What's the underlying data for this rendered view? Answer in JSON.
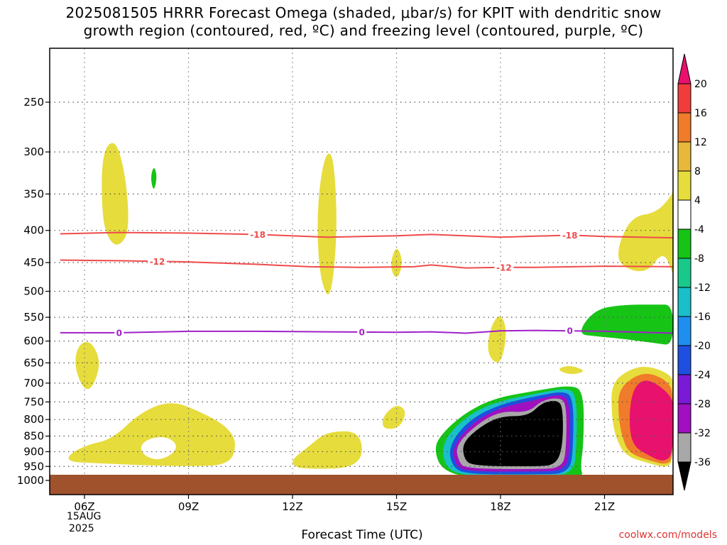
{
  "title_line1": "2025081505 HRRR Forecast Omega (shaded, μbar/s) for KPIT with dendritic snow",
  "title_line2": "growth region (contoured, red, ºC) and freezing level (contoured, purple, ºC)",
  "xlabel": "Forecast Time (UTC)",
  "credit": "coolwx.com/models",
  "date_line1": "15AUG",
  "date_line2": "2025",
  "chart_data": {
    "type": "time-height contour",
    "y_scale": "log-pressure (hPa), inverted",
    "x_ticks": [
      {
        "hour": 6,
        "label": "06Z"
      },
      {
        "hour": 9,
        "label": "09Z"
      },
      {
        "hour": 12,
        "label": "12Z"
      },
      {
        "hour": 15,
        "label": "15Z"
      },
      {
        "hour": 18,
        "label": "18Z"
      },
      {
        "hour": 21,
        "label": "21Z"
      }
    ],
    "y_ticks": [
      250,
      300,
      350,
      400,
      450,
      500,
      550,
      600,
      650,
      700,
      750,
      800,
      850,
      900,
      950,
      1000
    ],
    "colorbar_labels": [
      20,
      16,
      12,
      8,
      4,
      -4,
      -8,
      -12,
      -16,
      -20,
      -24,
      -28,
      -32,
      -36
    ],
    "colorbar_colors": [
      "#e8116e",
      "#f23b3b",
      "#f07b2a",
      "#e8b83a",
      "#e6dc3c",
      "#ffffff",
      "#16c416",
      "#18c98a",
      "#19bfc9",
      "#1e8ef0",
      "#1e4fe0",
      "#7a1ad6",
      "#a010c0",
      "#a8a8a8",
      "#000000"
    ],
    "contours": [
      {
        "name": "dgz-minus18",
        "label": "-18",
        "color": "#ef4b4b",
        "points": [
          [
            5.3,
            405
          ],
          [
            7,
            403
          ],
          [
            9,
            404
          ],
          [
            11,
            406
          ],
          [
            13,
            410
          ],
          [
            15,
            408
          ],
          [
            16,
            406
          ],
          [
            18,
            410
          ],
          [
            20,
            407
          ],
          [
            21,
            409
          ],
          [
            23,
            411
          ]
        ],
        "label_hours": [
          11.0,
          20.0
        ]
      },
      {
        "name": "dgz-minus12",
        "label": "-12",
        "color": "#ef4b4b",
        "points": [
          [
            5.3,
            446
          ],
          [
            7,
            447
          ],
          [
            9,
            449
          ],
          [
            11,
            453
          ],
          [
            12.5,
            457
          ],
          [
            14,
            458
          ],
          [
            15.5,
            457
          ],
          [
            16,
            454
          ],
          [
            17,
            459
          ],
          [
            18,
            458
          ],
          [
            19,
            458
          ],
          [
            21,
            456
          ],
          [
            23,
            457
          ]
        ],
        "label_hours": [
          8.1,
          18.1
        ]
      },
      {
        "name": "freezing-level",
        "label": "0",
        "color": "#a020c8",
        "points": [
          [
            5.3,
            582
          ],
          [
            7,
            582
          ],
          [
            9,
            579
          ],
          [
            11,
            579
          ],
          [
            13,
            580
          ],
          [
            15,
            581
          ],
          [
            16,
            580
          ],
          [
            17,
            583
          ],
          [
            18,
            578
          ],
          [
            19,
            577
          ],
          [
            20,
            578
          ],
          [
            21,
            579
          ],
          [
            23,
            583
          ]
        ],
        "label_hours": [
          7.0,
          14.0,
          20.0
        ]
      }
    ],
    "shaded_regions": [
      {
        "name": "uplift-yellow-1",
        "level": 4,
        "points": [
          [
            6.5,
            300
          ],
          [
            6.9,
            285
          ],
          [
            7.2,
            330
          ],
          [
            7.3,
            400
          ],
          [
            7.0,
            425
          ],
          [
            6.7,
            415
          ],
          [
            6.5,
            380
          ]
        ]
      },
      {
        "name": "uplift-yellow-2",
        "level": 4,
        "points": [
          [
            13.0,
            298
          ],
          [
            13.2,
            308
          ],
          [
            13.3,
            400
          ],
          [
            13.1,
            522
          ],
          [
            12.8,
            480
          ],
          [
            12.7,
            395
          ],
          [
            12.8,
            330
          ]
        ]
      },
      {
        "name": "uplift-yellow-3",
        "level": 4,
        "points": [
          [
            15.0,
            420
          ],
          [
            15.2,
            450
          ],
          [
            15.0,
            482
          ],
          [
            14.8,
            455
          ]
        ]
      },
      {
        "name": "uplift-yellow-4",
        "level": 4,
        "points": [
          [
            5.8,
            608
          ],
          [
            6.2,
            598
          ],
          [
            6.5,
            655
          ],
          [
            6.1,
            735
          ],
          [
            5.7,
            665
          ]
        ]
      },
      {
        "name": "uplift-yellow-5",
        "level": 4,
        "points": [
          [
            5.5,
            915
          ],
          [
            6.0,
            880
          ],
          [
            6.8,
            860
          ],
          [
            7.6,
            780
          ],
          [
            8.5,
            745
          ],
          [
            9.4,
            780
          ],
          [
            10.1,
            820
          ],
          [
            10.4,
            870
          ],
          [
            10.2,
            945
          ],
          [
            9.0,
            950
          ],
          [
            7.4,
            945
          ],
          [
            6.3,
            938
          ],
          [
            5.6,
            935
          ]
        ]
      },
      {
        "name": "uplift-yellow-6",
        "level": 4,
        "points": [
          [
            12.0,
            925
          ],
          [
            12.5,
            880
          ],
          [
            13.0,
            835
          ],
          [
            14.0,
            835
          ],
          [
            14.0,
            955
          ],
          [
            12.3,
            960
          ],
          [
            12.0,
            945
          ]
        ]
      },
      {
        "name": "uplift-yellow-7",
        "level": 4,
        "points": [
          [
            14.6,
            790
          ],
          [
            15.0,
            755
          ],
          [
            15.3,
            775
          ],
          [
            15.1,
            825
          ],
          [
            14.6,
            830
          ]
        ]
      },
      {
        "name": "uplift-yellow-8",
        "level": 4,
        "points": [
          [
            17.7,
            570
          ],
          [
            18.0,
            540
          ],
          [
            18.2,
            580
          ],
          [
            18.0,
            660
          ],
          [
            17.6,
            630
          ]
        ]
      },
      {
        "name": "uplift-yellow-9",
        "level": 4,
        "points": [
          [
            21.4,
            420
          ],
          [
            21.8,
            380
          ],
          [
            22.5,
            375
          ],
          [
            23.0,
            350
          ],
          [
            23.4,
            340
          ],
          [
            23.4,
            470
          ],
          [
            23.0,
            470
          ],
          [
            22.7,
            430
          ],
          [
            22.2,
            470
          ],
          [
            21.4,
            455
          ]
        ]
      },
      {
        "name": "uplift-yellow-10",
        "level": 4,
        "points": [
          [
            19.6,
            665
          ],
          [
            20.0,
            655
          ],
          [
            20.5,
            670
          ],
          [
            20.0,
            680
          ]
        ]
      },
      {
        "name": "uplift-yellow-11",
        "level": 4,
        "points": [
          [
            21.2,
            705
          ],
          [
            21.6,
            670
          ],
          [
            22.2,
            655
          ],
          [
            23.0,
            680
          ],
          [
            23.4,
            720
          ],
          [
            23.4,
            930
          ],
          [
            22.8,
            955
          ],
          [
            22.3,
            940
          ],
          [
            21.6,
            915
          ],
          [
            21.3,
            850
          ],
          [
            21.2,
            780
          ]
        ]
      },
      {
        "name": "uplift-orange-1",
        "level": 12,
        "points": [
          [
            21.4,
            720
          ],
          [
            21.8,
            685
          ],
          [
            22.3,
            672
          ],
          [
            22.9,
            700
          ],
          [
            23.4,
            740
          ],
          [
            23.4,
            920
          ],
          [
            22.8,
            945
          ],
          [
            22.3,
            930
          ],
          [
            21.7,
            905
          ],
          [
            21.5,
            850
          ],
          [
            21.4,
            790
          ]
        ]
      },
      {
        "name": "uplift-magenta-1",
        "level": 20,
        "points": [
          [
            21.8,
            720
          ],
          [
            22.1,
            690
          ],
          [
            22.5,
            700
          ],
          [
            23.0,
            740
          ],
          [
            23.4,
            780
          ],
          [
            23.4,
            910
          ],
          [
            22.7,
            935
          ],
          [
            22.3,
            915
          ],
          [
            21.8,
            880
          ],
          [
            21.7,
            800
          ]
        ]
      },
      {
        "name": "sink-green-1",
        "level": -4,
        "points": [
          [
            20.2,
            585
          ],
          [
            20.7,
            535
          ],
          [
            21.5,
            525
          ],
          [
            22.5,
            525
          ],
          [
            23.4,
            525
          ],
          [
            23.4,
            610
          ],
          [
            22.5,
            605
          ],
          [
            21.5,
            595
          ],
          [
            20.8,
            590
          ]
        ]
      },
      {
        "name": "sink-green-2",
        "level": -4,
        "points": [
          [
            8.0,
            315
          ],
          [
            8.1,
            328
          ],
          [
            8.0,
            348
          ],
          [
            7.9,
            330
          ]
        ]
      },
      {
        "name": "sink-green-3",
        "level": -4,
        "points": [
          [
            16.2,
            855
          ],
          [
            16.9,
            785
          ],
          [
            17.8,
            740
          ],
          [
            19.0,
            720
          ],
          [
            20.0,
            705
          ],
          [
            20.4,
            720
          ],
          [
            20.4,
            870
          ],
          [
            20.3,
            955
          ],
          [
            20.4,
            990
          ],
          [
            19.0,
            992
          ],
          [
            17.0,
            990
          ],
          [
            16.3,
            960
          ],
          [
            16.1,
            900
          ]
        ]
      },
      {
        "name": "sink-teal-1",
        "level": -12,
        "points": [
          [
            16.3,
            870
          ],
          [
            17.0,
            790
          ],
          [
            17.9,
            748
          ],
          [
            19.0,
            728
          ],
          [
            19.9,
            712
          ],
          [
            20.2,
            730
          ],
          [
            20.2,
            880
          ],
          [
            20.1,
            980
          ],
          [
            19.0,
            985
          ],
          [
            17.0,
            985
          ],
          [
            16.4,
            955
          ]
        ]
      },
      {
        "name": "sink-blue-1",
        "level": -20,
        "points": [
          [
            16.5,
            880
          ],
          [
            17.1,
            800
          ],
          [
            18.0,
            756
          ],
          [
            19.0,
            735
          ],
          [
            19.8,
            720
          ],
          [
            20.1,
            738
          ],
          [
            20.1,
            880
          ],
          [
            20.0,
            975
          ],
          [
            19.0,
            978
          ],
          [
            17.0,
            978
          ],
          [
            16.6,
            950
          ]
        ]
      },
      {
        "name": "sink-purple-1",
        "level": -28,
        "points": [
          [
            16.6,
            885
          ],
          [
            17.2,
            808
          ],
          [
            18.0,
            765
          ],
          [
            19.0,
            745
          ],
          [
            19.7,
            728
          ],
          [
            20.0,
            745
          ],
          [
            20.0,
            880
          ],
          [
            19.9,
            965
          ],
          [
            19.0,
            968
          ],
          [
            17.0,
            968
          ],
          [
            16.7,
            945
          ]
        ]
      },
      {
        "name": "sink-gray-1",
        "level": -32,
        "points": [
          [
            16.7,
            880
          ],
          [
            17.3,
            815
          ],
          [
            18.0,
            775
          ],
          [
            18.8,
            780
          ],
          [
            19.2,
            745
          ],
          [
            19.7,
            738
          ],
          [
            19.9,
            755
          ],
          [
            19.9,
            880
          ],
          [
            19.8,
            955
          ],
          [
            19.0,
            960
          ],
          [
            17.0,
            958
          ],
          [
            16.8,
            935
          ]
        ]
      },
      {
        "name": "sink-black-1",
        "level": -36,
        "points": [
          [
            16.9,
            872
          ],
          [
            17.4,
            822
          ],
          [
            18.0,
            790
          ],
          [
            18.8,
            790
          ],
          [
            19.2,
            752
          ],
          [
            19.6,
            745
          ],
          [
            19.8,
            760
          ],
          [
            19.8,
            880
          ],
          [
            19.6,
            945
          ],
          [
            19.0,
            950
          ],
          [
            17.2,
            948
          ],
          [
            16.95,
            925
          ]
        ]
      },
      {
        "name": "clear-hole-1",
        "level": 0,
        "points": [
          [
            7.6,
            880
          ],
          [
            7.9,
            855
          ],
          [
            8.4,
            852
          ],
          [
            8.7,
            880
          ],
          [
            8.5,
            912
          ],
          [
            8.1,
            930
          ],
          [
            7.7,
            912
          ]
        ]
      }
    ]
  }
}
